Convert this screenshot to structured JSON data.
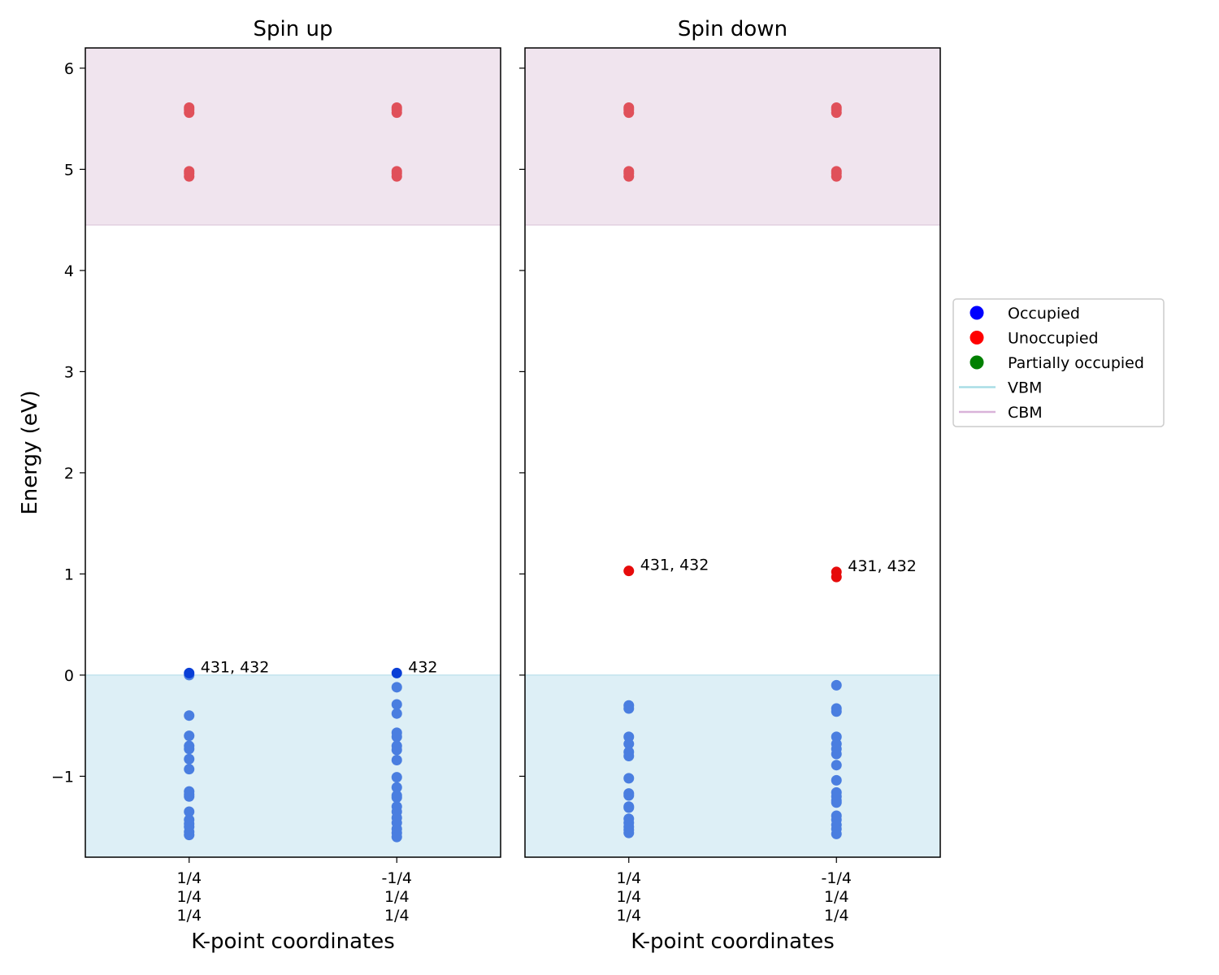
{
  "chart_data": {
    "type": "scatter",
    "ylabel": "Energy (eV)",
    "ylim": [
      -1.8,
      6.2
    ],
    "yticks": [
      -1,
      0,
      1,
      2,
      3,
      4,
      5,
      6
    ],
    "ytick_labels": [
      "−1",
      "0",
      "1",
      "2",
      "3",
      "4",
      "5",
      "6"
    ],
    "vbm": 0.0,
    "cbm": 4.45,
    "colors": {
      "occupied": "#4a7ee0",
      "unoccupied": "#e0505a",
      "highlight_occupied": "#0a3fd6",
      "highlight_unoccupied": "#e60b0b",
      "vbm_fill": "#ddeff6",
      "cbm_fill": "#f0e4ee",
      "legend_occupied": "#0000ff",
      "legend_unoccupied": "#ff0000",
      "legend_partial": "#008000",
      "legend_vbm": "#a9dde6",
      "legend_cbm": "#d9b3d9"
    },
    "legend": {
      "placement": "right",
      "items": [
        {
          "label": "Occupied",
          "kind": "marker",
          "color_key": "legend_occupied"
        },
        {
          "label": "Unoccupied",
          "kind": "marker",
          "color_key": "legend_unoccupied"
        },
        {
          "label": "Partially occupied",
          "kind": "marker",
          "color_key": "legend_partial"
        },
        {
          "label": "VBM",
          "kind": "line",
          "color_key": "legend_vbm"
        },
        {
          "label": "CBM",
          "kind": "line",
          "color_key": "legend_cbm"
        }
      ]
    },
    "panels": [
      {
        "title": "Spin up",
        "xlabel": "K-point coordinates",
        "kpoints": [
          {
            "label": [
              "1/4",
              "1/4",
              "1/4"
            ],
            "occupied": [
              0.0,
              -0.4,
              -0.6,
              -0.7,
              -0.73,
              -0.83,
              -0.93,
              -1.15,
              -1.18,
              -1.2,
              -1.35,
              -1.43,
              -1.47,
              -1.5,
              -1.55,
              -1.58
            ],
            "unoccupied": [
              4.93,
              4.96,
              4.98,
              5.56,
              5.59,
              5.61
            ],
            "highlight": [
              {
                "e": 0.02,
                "occ": "occupied",
                "label": "431, 432"
              }
            ]
          },
          {
            "label": [
              "-1/4",
              "1/4",
              "1/4"
            ],
            "occupied": [
              -0.12,
              -0.29,
              -0.38,
              -0.57,
              -0.61,
              -0.7,
              -0.74,
              -0.84,
              -1.01,
              -1.11,
              -1.19,
              -1.21,
              -1.3,
              -1.35,
              -1.41,
              -1.46,
              -1.52,
              -1.56,
              -1.6
            ],
            "unoccupied": [
              4.93,
              4.96,
              4.98,
              5.56,
              5.59,
              5.61
            ],
            "highlight": [
              {
                "e": 0.02,
                "occ": "occupied",
                "label": "432"
              }
            ]
          }
        ]
      },
      {
        "title": "Spin down",
        "xlabel": "K-point coordinates",
        "kpoints": [
          {
            "label": [
              "1/4",
              "1/4",
              "1/4"
            ],
            "occupied": [
              -0.3,
              -0.33,
              -0.61,
              -0.68,
              -0.76,
              -0.8,
              -1.02,
              -1.17,
              -1.19,
              -1.3,
              -1.31,
              -1.42,
              -1.46,
              -1.5,
              -1.53,
              -1.56
            ],
            "unoccupied": [
              4.93,
              4.96,
              4.98,
              5.56,
              5.59,
              5.61
            ],
            "highlight": [
              {
                "e": 1.03,
                "occ": "unoccupied",
                "label": "431, 432"
              }
            ]
          },
          {
            "label": [
              "-1/4",
              "1/4",
              "1/4"
            ],
            "occupied": [
              -0.1,
              -0.33,
              -0.36,
              -0.61,
              -0.68,
              -0.73,
              -0.78,
              -0.89,
              -1.04,
              -1.16,
              -1.2,
              -1.24,
              -1.26,
              -1.39,
              -1.43,
              -1.48,
              -1.52,
              -1.57
            ],
            "unoccupied": [
              4.93,
              4.96,
              4.98,
              5.56,
              5.59,
              5.61
            ],
            "highlight": [
              {
                "e": 1.02,
                "occ": "unoccupied",
                "label": "431, 432"
              },
              {
                "e": 0.97,
                "occ": "unoccupied",
                "label": ""
              }
            ]
          }
        ]
      }
    ]
  }
}
